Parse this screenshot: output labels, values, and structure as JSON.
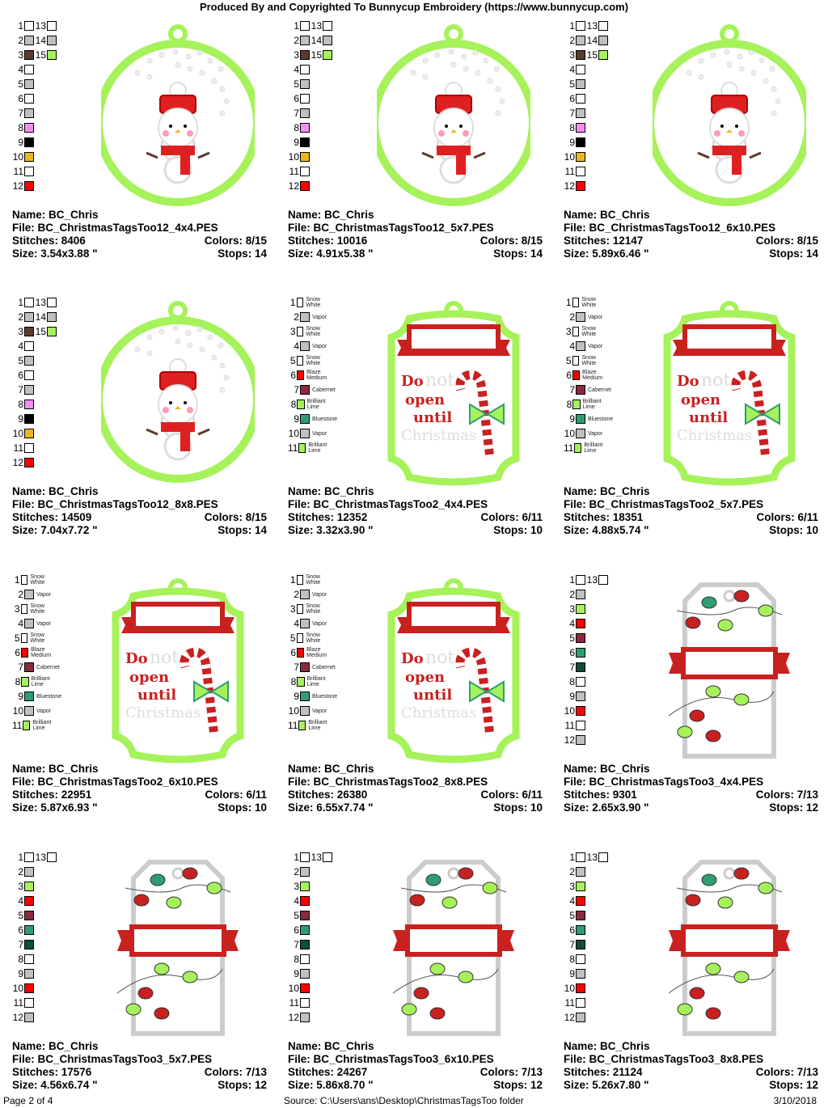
{
  "header": "Produced By and Copyrighted To Bunnycup Embroidery (https://www.bunnycup.com)",
  "palettes": {
    "snowman": [
      {
        "n": "1",
        "c": "#ffffff"
      },
      {
        "n": "2",
        "c": "#c0c0c0"
      },
      {
        "n": "3",
        "c": "#5c3a2e"
      },
      {
        "n": "4",
        "c": "#ffffff"
      },
      {
        "n": "5",
        "c": "#c0c0c0"
      },
      {
        "n": "6",
        "c": "#ffffff"
      },
      {
        "n": "7",
        "c": "#c0c0c0"
      },
      {
        "n": "8",
        "c": "#f58ef0"
      },
      {
        "n": "9",
        "c": "#000000"
      },
      {
        "n": "10",
        "c": "#e8b923"
      },
      {
        "n": "11",
        "c": "#ffffff"
      },
      {
        "n": "12",
        "c": "#ff0000"
      },
      {
        "n": "13",
        "c": "#ffffff"
      },
      {
        "n": "14",
        "c": "#c0c0c0"
      },
      {
        "n": "15",
        "c": "#a6f25a"
      }
    ],
    "tags2": [
      {
        "n": "1",
        "c": "#ffffff",
        "name": "Snow White"
      },
      {
        "n": "2",
        "c": "#c0c0c0",
        "name": "Vapor"
      },
      {
        "n": "3",
        "c": "#ffffff",
        "name": "Snow White"
      },
      {
        "n": "4",
        "c": "#c0c0c0",
        "name": "Vapor"
      },
      {
        "n": "5",
        "c": "#ffffff",
        "name": "Snow White"
      },
      {
        "n": "6",
        "c": "#ff0000",
        "name": "Blaze Medium"
      },
      {
        "n": "7",
        "c": "#8a2a40",
        "name": "Cabernet"
      },
      {
        "n": "8",
        "c": "#a6f25a",
        "name": "Brilliant Lime"
      },
      {
        "n": "9",
        "c": "#2e9e72",
        "name": "Bluestone"
      },
      {
        "n": "10",
        "c": "#c0c0c0",
        "name": "Vapor"
      },
      {
        "n": "11",
        "c": "#a6f25a",
        "name": "Brilliant Lime"
      }
    ],
    "tags3": [
      {
        "n": "1",
        "c": "#ffffff"
      },
      {
        "n": "2",
        "c": "#c0c0c0"
      },
      {
        "n": "3",
        "c": "#a6f25a"
      },
      {
        "n": "4",
        "c": "#ff0000"
      },
      {
        "n": "5",
        "c": "#8a2a40"
      },
      {
        "n": "6",
        "c": "#2e9e72"
      },
      {
        "n": "7",
        "c": "#0f4d36"
      },
      {
        "n": "8",
        "c": "#ffffff"
      },
      {
        "n": "9",
        "c": "#c0c0c0"
      },
      {
        "n": "10",
        "c": "#ff0000"
      },
      {
        "n": "11",
        "c": "#ffffff"
      },
      {
        "n": "12",
        "c": "#c0c0c0"
      },
      {
        "n": "13",
        "c": "#ffffff"
      }
    ]
  },
  "labels": {
    "name": "Name: ",
    "file": "File: ",
    "stitches": "Stitches: ",
    "colors": "Colors: ",
    "size": "Size: ",
    "stops": "Stops: "
  },
  "tag_text": {
    "line1": "Do",
    "line2": "not",
    "line3": "open",
    "line4": "until",
    "line5": "Christmas"
  },
  "designs": [
    {
      "type": "snowman",
      "name": "BC_Chris",
      "file": "BC_ChristmasTagsToo12_4x4.PES",
      "stitches": "8406",
      "colors": "8/15",
      "size": "3.54x3.88 \"",
      "stops": "14"
    },
    {
      "type": "snowman",
      "name": "BC_Chris",
      "file": "BC_ChristmasTagsToo12_5x7.PES",
      "stitches": "10016",
      "colors": "8/15",
      "size": "4.91x5.38 \"",
      "stops": "14"
    },
    {
      "type": "snowman",
      "name": "BC_Chris",
      "file": "BC_ChristmasTagsToo12_6x10.PES",
      "stitches": "12147",
      "colors": "8/15",
      "size": "5.89x6.46 \"",
      "stops": "14"
    },
    {
      "type": "snowman",
      "name": "BC_Chris",
      "file": "BC_ChristmasTagsToo12_8x8.PES",
      "stitches": "14509",
      "colors": "8/15",
      "size": "7.04x7.72 \"",
      "stops": "14"
    },
    {
      "type": "tags2",
      "name": "BC_Chris",
      "file": "BC_ChristmasTagsToo2_4x4.PES",
      "stitches": "12352",
      "colors": "6/11",
      "size": "3.32x3.90 \"",
      "stops": "10"
    },
    {
      "type": "tags2",
      "name": "BC_Chris",
      "file": "BC_ChristmasTagsToo2_5x7.PES",
      "stitches": "18351",
      "colors": "6/11",
      "size": "4.88x5.74 \"",
      "stops": "10"
    },
    {
      "type": "tags2",
      "name": "BC_Chris",
      "file": "BC_ChristmasTagsToo2_6x10.PES",
      "stitches": "22951",
      "colors": "6/11",
      "size": "5.87x6.93 \"",
      "stops": "10"
    },
    {
      "type": "tags2",
      "name": "BC_Chris",
      "file": "BC_ChristmasTagsToo2_8x8.PES",
      "stitches": "26380",
      "colors": "6/11",
      "size": "6.55x7.74 \"",
      "stops": "10"
    },
    {
      "type": "tags3",
      "name": "BC_Chris",
      "file": "BC_ChristmasTagsToo3_4x4.PES",
      "stitches": "9301",
      "colors": "7/13",
      "size": "2.65x3.90 \"",
      "stops": "12"
    },
    {
      "type": "tags3",
      "name": "BC_Chris",
      "file": "BC_ChristmasTagsToo3_5x7.PES",
      "stitches": "17576",
      "colors": "7/13",
      "size": "4.56x6.74 \"",
      "stops": "12"
    },
    {
      "type": "tags3",
      "name": "BC_Chris",
      "file": "BC_ChristmasTagsToo3_6x10.PES",
      "stitches": "24267",
      "colors": "7/13",
      "size": "5.86x8.70 \"",
      "stops": "12"
    },
    {
      "type": "tags3",
      "name": "BC_Chris",
      "file": "BC_ChristmasTagsToo3_8x8.PES",
      "stitches": "21124",
      "colors": "7/13",
      "size": "5.26x7.80 \"",
      "stops": "12"
    }
  ],
  "footer": {
    "page": "Page 2 of 4",
    "source": "Source: C:\\Users\\ans\\Desktop\\ChristmasTagsToo folder",
    "date": "3/10/2018"
  }
}
